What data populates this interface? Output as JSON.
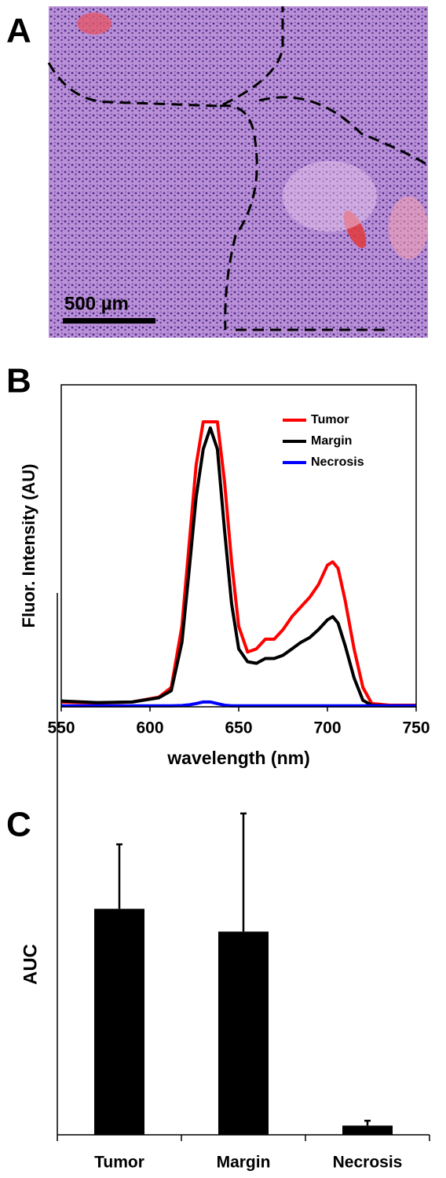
{
  "figure": {
    "panel_labels": [
      "A",
      "B",
      "C"
    ],
    "scale_bar": "500 µm"
  },
  "chart_data": [
    {
      "type": "line",
      "x_label": "wavelength (nm)",
      "y_label": "Fluor. Intensity (AU)",
      "x": [
        550,
        570,
        590,
        605,
        612,
        618,
        622,
        626,
        630,
        634,
        638,
        642,
        646,
        650,
        655,
        660,
        665,
        670,
        675,
        680,
        685,
        690,
        695,
        700,
        703,
        706,
        710,
        715,
        720,
        725,
        735,
        750
      ],
      "series": [
        {
          "name": "Tumor",
          "color": "#ff0000",
          "values": [
            1.5,
            1.2,
            1.5,
            3,
            6,
            25,
            50,
            75,
            88.5,
            88.5,
            88.5,
            70,
            45,
            25,
            17,
            18,
            21,
            21,
            24,
            28,
            31,
            34,
            38,
            44,
            45,
            43,
            33,
            18,
            6,
            1,
            0.5,
            0.5
          ]
        },
        {
          "name": "Margin",
          "color": "#000000",
          "values": [
            1.8,
            1.3,
            1.5,
            2.8,
            5,
            20,
            42,
            65,
            80,
            86.6,
            80,
            55,
            32,
            18,
            14,
            13.5,
            15,
            15,
            16,
            18,
            20,
            21.5,
            24,
            27,
            28,
            26,
            19,
            9,
            2,
            0.5,
            0.3,
            0.3
          ]
        },
        {
          "name": "Necrosis",
          "color": "#0000ff",
          "values": [
            0.3,
            0.3,
            0.3,
            0.3,
            0.3,
            0.4,
            0.6,
            1,
            1.5,
            1.5,
            1,
            0.5,
            0.3,
            0.3,
            0.3,
            0.3,
            0.3,
            0.3,
            0.3,
            0.3,
            0.3,
            0.3,
            0.3,
            0.3,
            0.3,
            0.3,
            0.3,
            0.3,
            0.3,
            0.3,
            0.3,
            0.3
          ]
        }
      ],
      "xlim": [
        550,
        750
      ],
      "xticks": [
        550,
        600,
        650,
        700,
        750
      ],
      "ylim": [
        0,
        100
      ],
      "legend": "upper right"
    },
    {
      "type": "bar",
      "y_label": "AUC",
      "categories": [
        "Tumor",
        "Margin",
        "Necrosis"
      ],
      "values": [
        41.7,
        37.5,
        1.7
      ],
      "errors": [
        11.9,
        21.8,
        0.9
      ],
      "color": "#000000",
      "ylim": [
        0,
        100
      ]
    }
  ]
}
